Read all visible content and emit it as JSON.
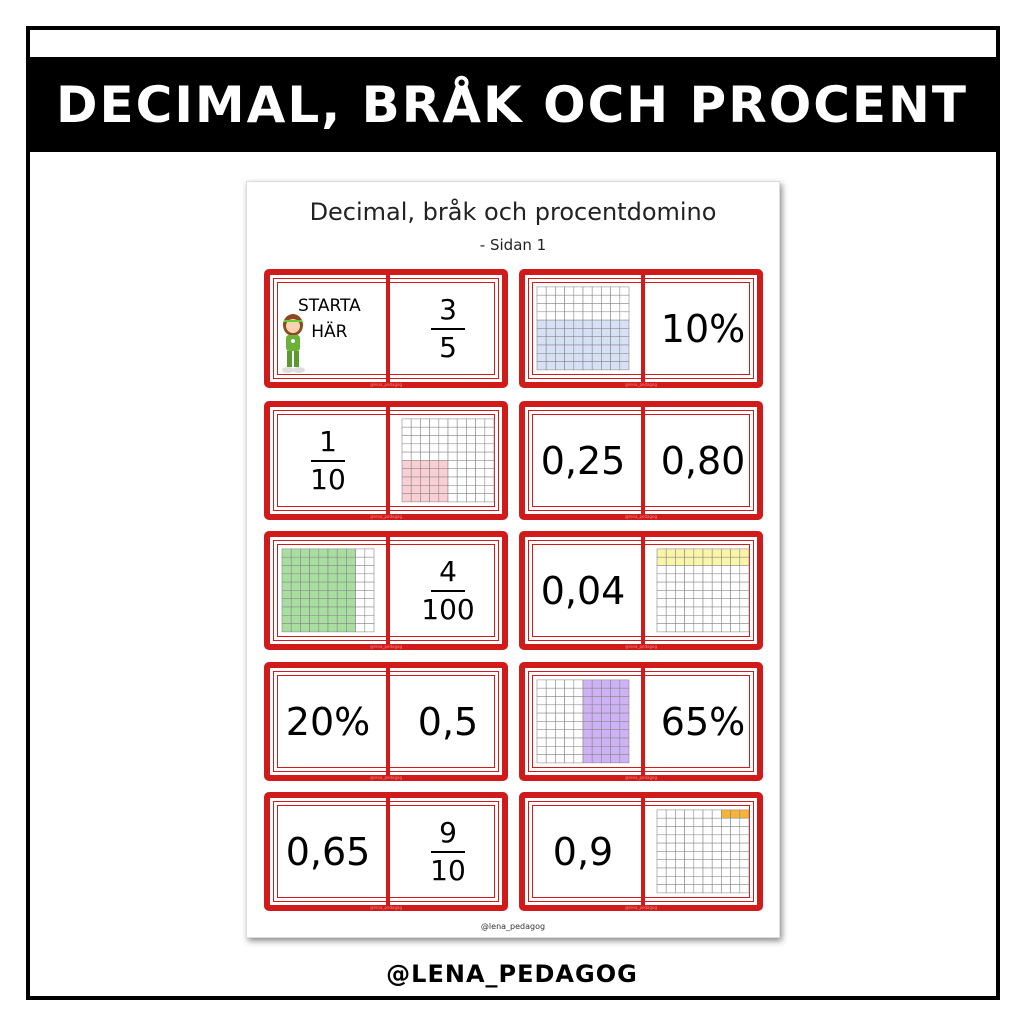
{
  "banner": {
    "title": "Decimal, bråk och procent"
  },
  "paper": {
    "title": "Decimal, bråk och procentdomino",
    "subtitle": "- Sidan 1",
    "footer": "@lena_pedagog",
    "card_watermark": "@lena_pedagog",
    "dominoes": [
      {
        "left": {
          "type": "start",
          "line1": "STARTA",
          "line2": "HÄR",
          "icon": "girl-character"
        },
        "right": {
          "type": "fraction",
          "num": "3",
          "den": "5"
        }
      },
      {
        "left": {
          "type": "grid",
          "shaded": 60,
          "pattern": "bottom-rows",
          "color": "#d6e1f5"
        },
        "right": {
          "type": "text",
          "value": "10%"
        }
      },
      {
        "left": {
          "type": "fraction",
          "num": "1",
          "den": "10"
        },
        "right": {
          "type": "grid",
          "shaded": 25,
          "pattern": "bottom-left-block",
          "color": "#f9cfd4"
        }
      },
      {
        "left": {
          "type": "text",
          "value": "0,25"
        },
        "right": {
          "type": "text",
          "value": "0,80"
        }
      },
      {
        "left": {
          "type": "grid",
          "shaded": 80,
          "pattern": "left-columns",
          "color": "#a8dfa0"
        },
        "right": {
          "type": "fraction",
          "num": "4",
          "den": "100"
        }
      },
      {
        "left": {
          "type": "text",
          "value": "0,04"
        },
        "right": {
          "type": "grid",
          "shaded": 20,
          "pattern": "top-rows",
          "color": "#fbf5a8"
        }
      },
      {
        "left": {
          "type": "text",
          "value": "20%"
        },
        "right": {
          "type": "text",
          "value": "0,5"
        }
      },
      {
        "left": {
          "type": "grid",
          "shaded": 50,
          "pattern": "right-columns",
          "color": "#cdb3f5"
        },
        "right": {
          "type": "text",
          "value": "65%"
        }
      },
      {
        "left": {
          "type": "text",
          "value": "0,65"
        },
        "right": {
          "type": "fraction",
          "num": "9",
          "den": "10"
        }
      },
      {
        "left": {
          "type": "text",
          "value": "0,9"
        },
        "right": {
          "type": "grid",
          "shaded": 3,
          "pattern": "top-right-cells",
          "color": "#f7b23a"
        }
      }
    ]
  },
  "handle": "@LENA_PEDAGOG",
  "colors": {
    "domino_border": "#d11a1a",
    "banner": "#000000"
  }
}
